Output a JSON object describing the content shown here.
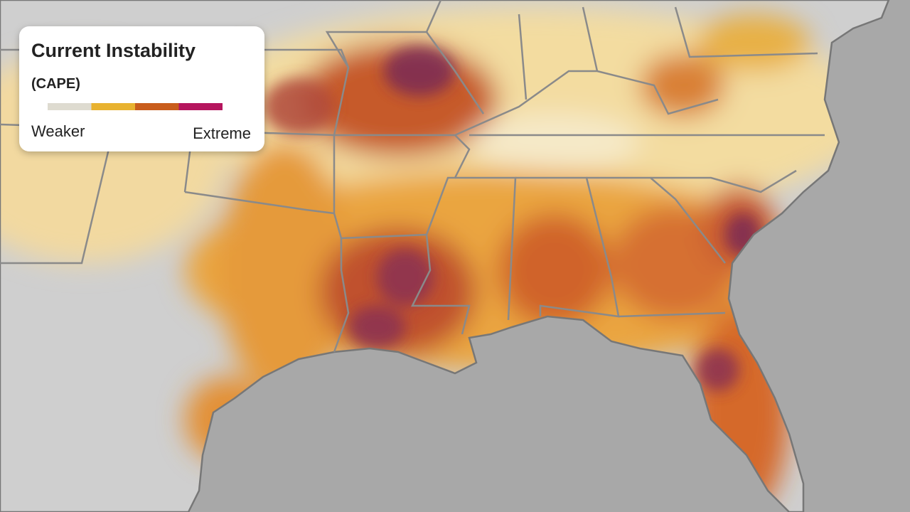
{
  "legend": {
    "title": "Current Instability",
    "subtitle": "(CAPE)",
    "low_label": "Weaker",
    "high_label": "Extreme",
    "colors": [
      "#dedbd0",
      "#e8b230",
      "#c95d1c",
      "#b5155e"
    ]
  }
}
